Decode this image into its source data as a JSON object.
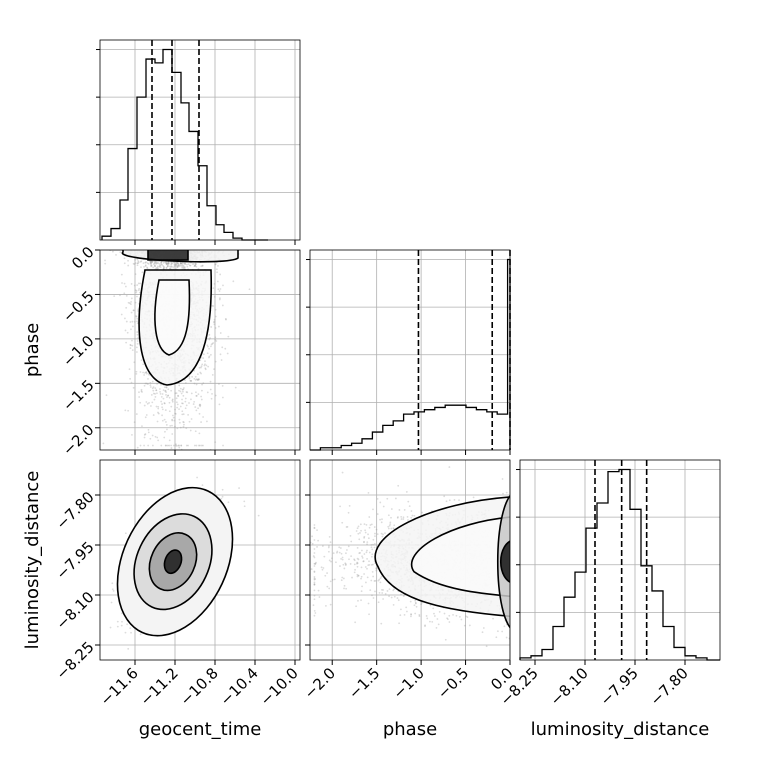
{
  "chart_data": {
    "type": "corner",
    "parameters": [
      "geocent_time",
      "phase",
      "luminosity_distance"
    ],
    "axis_ranges": {
      "geocent_time": [
        -11.95,
        -9.95
      ],
      "phase": [
        -2.25,
        0.0
      ],
      "luminosity_distance": [
        -8.295,
        -7.695
      ]
    },
    "ticks": {
      "geocent_time": [
        "−11.6",
        "−11.2",
        "−10.8",
        "−10.4",
        "−10.0"
      ],
      "phase": [
        "−2.0",
        "−1.5",
        "−1.0",
        "−0.5",
        "0.0"
      ],
      "luminosity_distance": [
        "−8.25",
        "−8.10",
        "−7.95",
        "−7.80"
      ]
    },
    "tick_values": {
      "geocent_time": [
        -11.6,
        -11.2,
        -10.8,
        -10.4,
        -10.0
      ],
      "phase": [
        -2.0,
        -1.5,
        -1.0,
        -0.5,
        0.0
      ],
      "luminosity_distance": [
        -8.25,
        -8.1,
        -7.95,
        -7.8
      ]
    },
    "quantile_lines": {
      "geocent_time": [
        -11.43,
        -11.23,
        -10.96
      ],
      "phase": [
        -1.03,
        -0.2,
        0.0
      ],
      "luminosity_distance": [
        -8.07,
        -7.99,
        -7.915
      ]
    },
    "histograms": {
      "geocent_time": {
        "bin_edges": [
          -11.93,
          -11.84,
          -11.75,
          -11.67,
          -11.58,
          -11.49,
          -11.4,
          -11.32,
          -11.23,
          -11.14,
          -11.06,
          -10.97,
          -10.88,
          -10.79,
          -10.71,
          -10.62,
          -10.53,
          -10.44,
          -10.36,
          -10.27
        ],
        "counts": [
          2,
          6,
          21,
          48,
          75,
          95,
          93,
          100,
          88,
          72,
          57,
          39,
          18,
          8,
          4,
          1,
          0,
          0,
          0
        ]
      },
      "phase": {
        "bin_edges": [
          -2.25,
          -2.133,
          -2.016,
          -1.899,
          -1.782,
          -1.665,
          -1.548,
          -1.431,
          -1.314,
          -1.197,
          -1.08,
          -0.963,
          -0.846,
          -0.729,
          -0.612,
          -0.495,
          -0.378,
          -0.261,
          -0.144,
          -0.027,
          0.0
        ],
        "counts": [
          0,
          1,
          1,
          2,
          3,
          5,
          8,
          11,
          13,
          16,
          17,
          18,
          19,
          20,
          20,
          19,
          18,
          17,
          16,
          85
        ]
      },
      "luminosity_distance": {
        "bin_edges": [
          -8.295,
          -8.262,
          -8.229,
          -8.196,
          -8.163,
          -8.13,
          -8.097,
          -8.064,
          -8.031,
          -7.998,
          -7.965,
          -7.932,
          -7.899,
          -7.866,
          -7.833,
          -7.8,
          -7.767,
          -7.734,
          -7.695
        ],
        "counts": [
          1,
          2,
          5,
          16,
          30,
          42,
          63,
          75,
          90,
          91,
          72,
          45,
          33,
          16,
          6,
          2,
          1,
          0
        ]
      }
    },
    "legend": "none",
    "grid": true
  }
}
